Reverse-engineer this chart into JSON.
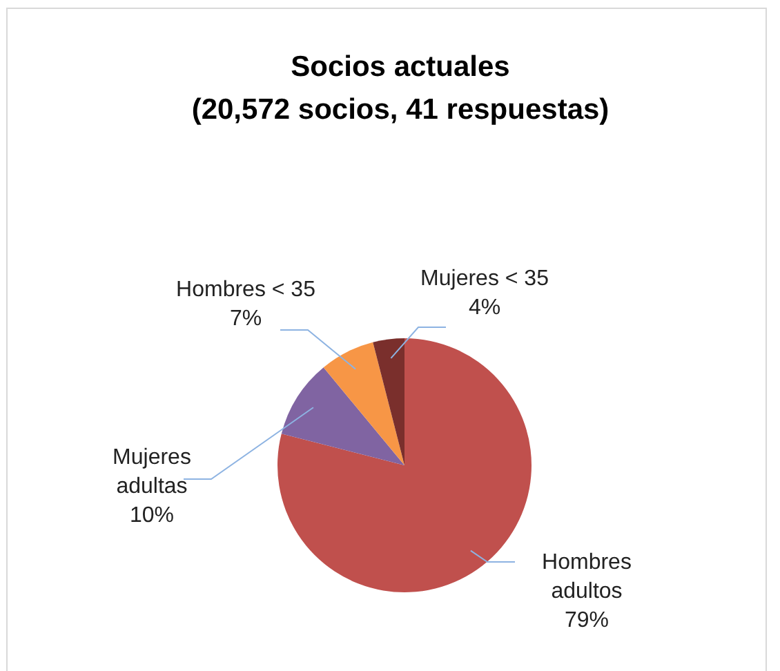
{
  "chart_data": {
    "type": "pie",
    "title": "Socios actuales\n(20,572 socios, 41 respuestas)",
    "categories": [
      "Hombres adultos",
      "Mujeres adultas",
      "Hombres < 35",
      "Mujeres < 35"
    ],
    "values": [
      79,
      10,
      7,
      4
    ],
    "value_labels": [
      "79%",
      "10%",
      "7%",
      "4%"
    ],
    "colors": [
      "#c0504d",
      "#8064a2",
      "#f79646",
      "#7a2f2c"
    ]
  }
}
